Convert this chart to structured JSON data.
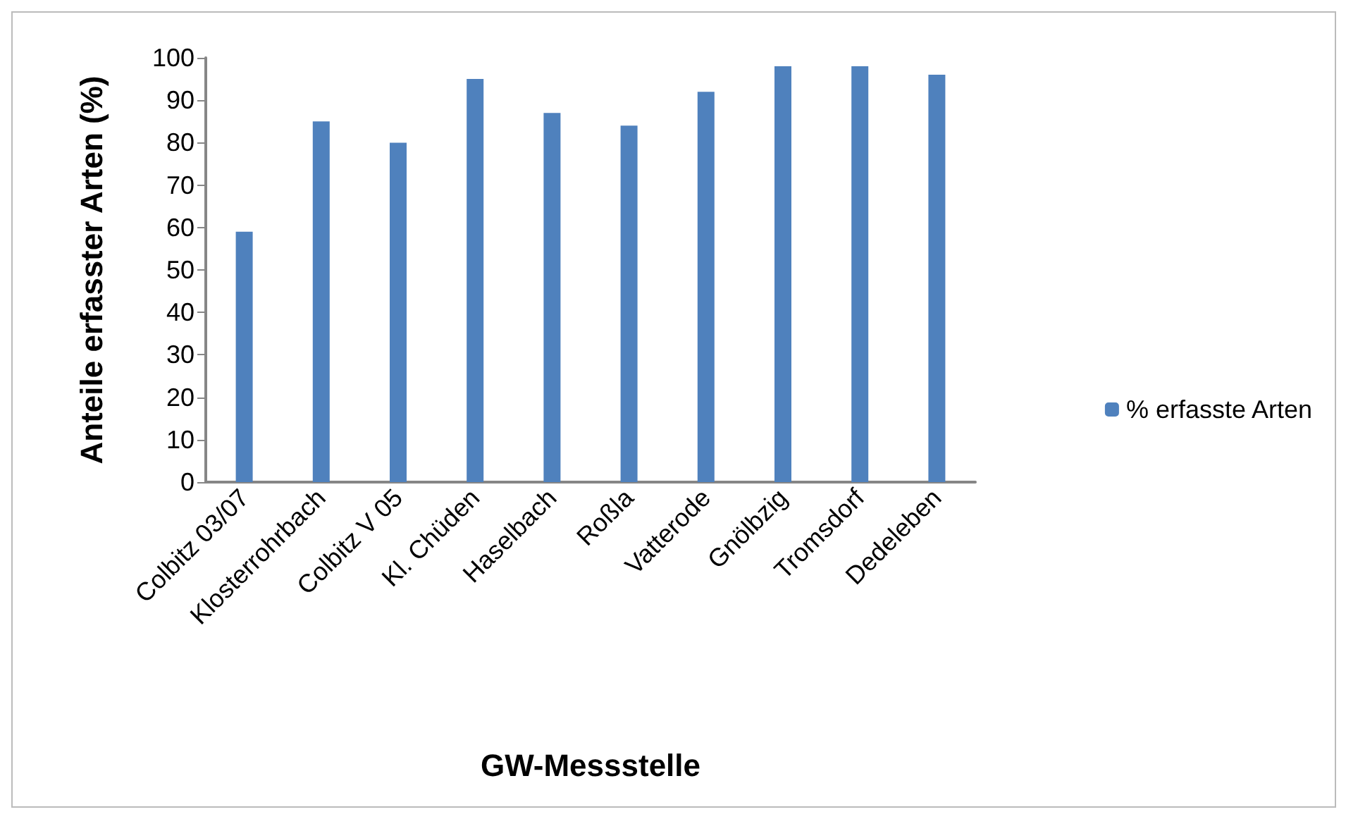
{
  "chart_data": {
    "type": "bar",
    "xlabel": "GW-Messstelle",
    "ylabel": "Anteile erfasster Arten (%)",
    "categories": [
      "Colbitz 03/07",
      "Klosterrohrbach",
      "Colbitz V 05",
      "Kl. Chüden",
      "Haselbach",
      "Roßla",
      "Vatterode",
      "Gnölbzig",
      "Tromsdorf",
      "Dedeleben"
    ],
    "series": [
      {
        "name": "% erfasste Arten",
        "color": "#4f81bd",
        "values": [
          59,
          85,
          80,
          95,
          87,
          84,
          92,
          98,
          98,
          96
        ]
      }
    ],
    "ylim": [
      0,
      100
    ],
    "yticks": [
      0,
      10,
      20,
      30,
      40,
      50,
      60,
      70,
      80,
      90,
      100
    ],
    "grid": false,
    "legend": "right"
  }
}
